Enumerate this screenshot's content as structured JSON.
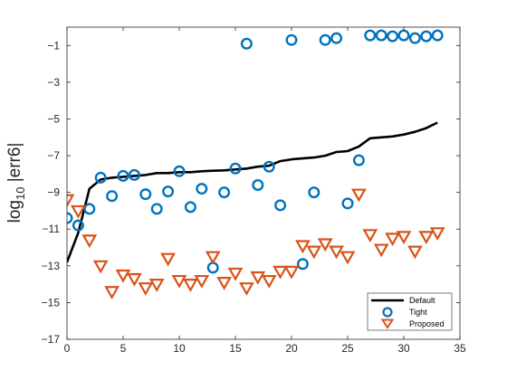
{
  "chart_data": {
    "type": "scatter",
    "xlabel": "",
    "ylabel": {
      "prefix": "log",
      "subscript": "10",
      "suffix": " |err6|"
    },
    "xlim": [
      0,
      35
    ],
    "ylim": [
      -17,
      0
    ],
    "xticks": [
      0,
      5,
      10,
      15,
      20,
      25,
      30,
      35
    ],
    "yticks": [
      -1,
      -3,
      -5,
      -7,
      -9,
      -11,
      -13,
      -15,
      -17
    ],
    "grid": false,
    "legend_position": "bottom-right",
    "series": [
      {
        "name": "Default",
        "kind": "line",
        "color": "#000000",
        "x": [
          0,
          1,
          2,
          3,
          4,
          5,
          6,
          7,
          8,
          9,
          10,
          11,
          12,
          13,
          14,
          15,
          16,
          17,
          18,
          19,
          20,
          21,
          22,
          23,
          24,
          25,
          26,
          27,
          28,
          29,
          30,
          31,
          32,
          33
        ],
        "y": [
          -12.8,
          -11.2,
          -8.8,
          -8.3,
          -8.2,
          -8.15,
          -8.1,
          -8.05,
          -7.95,
          -7.95,
          -7.9,
          -7.9,
          -7.85,
          -7.82,
          -7.8,
          -7.75,
          -7.7,
          -7.6,
          -7.55,
          -7.3,
          -7.2,
          -7.15,
          -7.1,
          -7.0,
          -6.8,
          -6.75,
          -6.5,
          -6.05,
          -6.0,
          -5.95,
          -5.85,
          -5.7,
          -5.5,
          -5.2
        ]
      },
      {
        "name": "Tight",
        "kind": "marker",
        "marker": "circle",
        "color": "#0072BD",
        "x": [
          0,
          1,
          2,
          3,
          4,
          5,
          6,
          7,
          8,
          9,
          10,
          11,
          12,
          13,
          14,
          15,
          16,
          17,
          18,
          19,
          20,
          21,
          22,
          23,
          24,
          25,
          26,
          27,
          28,
          29,
          30,
          31,
          32,
          33
        ],
        "y": [
          -10.4,
          -10.8,
          -9.9,
          -8.2,
          -9.2,
          -8.1,
          -8.05,
          -9.1,
          -9.9,
          -8.95,
          -7.85,
          -9.8,
          -8.8,
          -13.1,
          -9.0,
          -7.7,
          -0.9,
          -8.6,
          -7.6,
          -9.7,
          -0.7,
          -12.9,
          -9.0,
          -0.7,
          -0.6,
          -9.6,
          -7.25,
          -0.45,
          -0.45,
          -0.5,
          -0.45,
          -0.6,
          -0.5,
          -0.45
        ]
      },
      {
        "name": "Proposed",
        "kind": "marker",
        "marker": "triangle-down",
        "color": "#D95319",
        "x": [
          0,
          1,
          2,
          3,
          4,
          5,
          6,
          7,
          8,
          9,
          10,
          11,
          12,
          13,
          14,
          15,
          16,
          17,
          18,
          19,
          20,
          21,
          22,
          23,
          24,
          25,
          26,
          27,
          28,
          29,
          30,
          31,
          32,
          33
        ],
        "y": [
          -9.4,
          -10.0,
          -11.6,
          -13.0,
          -14.4,
          -13.5,
          -13.7,
          -14.2,
          -14.0,
          -12.6,
          -13.8,
          -14.0,
          -13.8,
          -12.5,
          -13.9,
          -13.4,
          -14.2,
          -13.6,
          -13.8,
          -13.3,
          -13.3,
          -11.9,
          -12.2,
          -11.8,
          -12.2,
          -12.5,
          -9.1,
          -11.3,
          -12.1,
          -11.5,
          -11.4,
          -12.2,
          -11.4,
          -11.2
        ]
      }
    ]
  }
}
